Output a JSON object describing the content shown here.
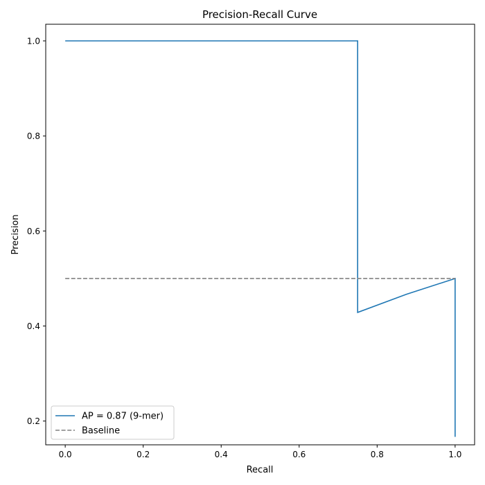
{
  "chart_data": {
    "type": "line",
    "title": "Precision-Recall Curve",
    "xlabel": "Recall",
    "ylabel": "Precision",
    "xlim": [
      -0.05,
      1.05
    ],
    "ylim": [
      0.15,
      1.035
    ],
    "xticks": [
      0.0,
      0.2,
      0.4,
      0.6,
      0.8,
      1.0
    ],
    "xtick_labels": [
      "0.0",
      "0.2",
      "0.4",
      "0.6",
      "0.8",
      "1.0"
    ],
    "yticks": [
      0.2,
      0.4,
      0.6,
      0.8,
      1.0
    ],
    "ytick_labels": [
      "0.2",
      "0.4",
      "0.6",
      "0.8",
      "1.0"
    ],
    "grid": false,
    "legend_position": "lower-left",
    "series": [
      {
        "name": "AP = 0.87 (9-mer)",
        "color": "#1f77b4",
        "style": "solid",
        "x": [
          0.0,
          0.125,
          0.25,
          0.375,
          0.5,
          0.625,
          0.75,
          0.75,
          0.875,
          1.0,
          1.0
        ],
        "y": [
          1.0,
          1.0,
          1.0,
          1.0,
          1.0,
          1.0,
          1.0,
          0.4286,
          0.4667,
          0.5,
          0.1667
        ]
      },
      {
        "name": "Baseline",
        "color": "#808080",
        "style": "dashed",
        "x": [
          0.0,
          1.0
        ],
        "y": [
          0.5,
          0.5
        ]
      }
    ]
  }
}
